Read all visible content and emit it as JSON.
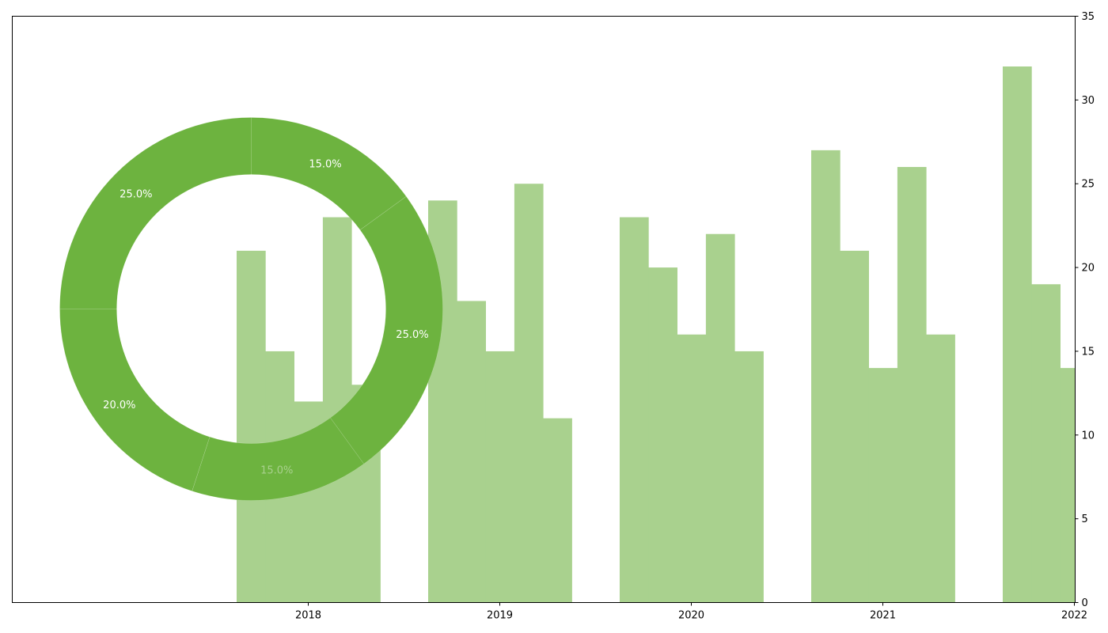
{
  "chart_data": [
    {
      "type": "bar",
      "x_ticks": [
        "2018",
        "2019",
        "2020",
        "2021",
        "2022"
      ],
      "y_ticks": [
        "0",
        "5",
        "10",
        "15",
        "20",
        "25",
        "30",
        "35"
      ],
      "ylim": [
        0,
        35
      ],
      "y_axis_side": "right",
      "grid": false,
      "groups": [
        {
          "values": [
            21,
            15,
            12,
            23,
            13
          ]
        },
        {
          "values": [
            24,
            18,
            15,
            25,
            11
          ]
        },
        {
          "values": [
            23,
            20,
            16,
            22,
            15
          ]
        },
        {
          "values": [
            27,
            21,
            14,
            26,
            16
          ]
        },
        {
          "values": [
            32,
            19,
            14
          ]
        }
      ],
      "color": "#a9d18e"
    },
    {
      "type": "pie",
      "style": "donut",
      "slices": [
        {
          "label": "15.0%",
          "value": 15.0
        },
        {
          "label": "25.0%",
          "value": 25.0
        },
        {
          "label": "15.0%",
          "value": 15.0
        },
        {
          "label": "20.0%",
          "value": 20.0
        },
        {
          "label": "25.0%",
          "value": 25.0
        }
      ],
      "slice_color": "#6db33f",
      "label_colors": [
        "#ffffff",
        "#ffffff",
        "#a9d18e",
        "#ffffff",
        "#ffffff"
      ]
    }
  ]
}
